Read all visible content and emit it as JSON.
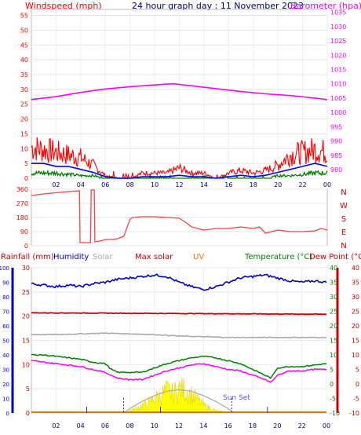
{
  "header": {
    "windspeed_label": "Windspeed (mph)",
    "title": "24 hour graph day : 11 November 2023",
    "barometer_label": "Barometer (hpa)"
  },
  "legend": {
    "rainfall": "Rainfall (mm)",
    "humidity": "Humidity",
    "solar": "Solar",
    "max_solar": "Max solar",
    "uv": "UV",
    "temperature": "Temperature (°C)",
    "dew_point": "Dew Point (°C)",
    "sunset": "Sun Set"
  },
  "colors": {
    "wind": "#ff0000",
    "wind_avg": "#0000ff",
    "wind_low": "#008000",
    "barometer": "#ff00ff",
    "direction": "#ff4040",
    "humidity": "#0000cc",
    "rainfall": "#cc0000",
    "solar": "#aaaaaa",
    "max_solar": "#cc0000",
    "uv": "#d08000",
    "temperature": "#008000",
    "dew_point": "#ff00ff",
    "sun": "#ffff00"
  },
  "chart_data": [
    {
      "type": "line",
      "panel": "wind_barometer",
      "x_ticks": [
        "02",
        "04",
        "06",
        "08",
        "10",
        "12",
        "14",
        "16",
        "18",
        "20",
        "22",
        "00"
      ],
      "y_left_ticks": [
        "0",
        "5",
        "10",
        "15",
        "20",
        "25",
        "30",
        "35",
        "40",
        "45",
        "50",
        "55"
      ],
      "y_right_ticks": [
        "980",
        "985",
        "990",
        "995",
        "1000",
        "1005",
        "1010",
        "1015",
        "1020",
        "1025",
        "1030",
        "1035"
      ],
      "ylim_left": [
        0,
        57
      ],
      "ylim_right": [
        977,
        1036
      ],
      "series": [
        {
          "name": "Barometer (hpa)",
          "axis": "right",
          "hours": [
            0,
            2,
            4,
            6,
            8,
            10,
            11.5,
            13,
            15,
            17,
            19,
            21,
            23,
            24
          ],
          "values": [
            1004.5,
            1005.5,
            1007,
            1008.2,
            1009,
            1009.6,
            1010,
            1009.3,
            1008.3,
            1007.3,
            1006.5,
            1005.9,
            1005,
            1004.5
          ]
        },
        {
          "name": "Windspeed (mph)",
          "axis": "left",
          "hours": [
            0,
            1,
            2,
            3,
            4,
            5,
            6,
            7,
            8,
            9,
            10,
            11,
            12,
            13,
            14,
            15,
            16,
            17,
            18,
            19,
            20,
            21,
            22,
            23,
            24
          ],
          "values": [
            12,
            11,
            10,
            9,
            8,
            5,
            1,
            0,
            0,
            2,
            2,
            2,
            4,
            2,
            2,
            0,
            2,
            3,
            2,
            3,
            5,
            9,
            10,
            11,
            10
          ]
        },
        {
          "name": "Average",
          "axis": "left",
          "hours": [
            0,
            1,
            2,
            3,
            4,
            5,
            6,
            7,
            8,
            9,
            10,
            11,
            12,
            13,
            14,
            15,
            16,
            17,
            18,
            19,
            20,
            21,
            22,
            23,
            24
          ],
          "values": [
            5,
            5,
            4,
            4,
            3,
            2,
            0.5,
            0,
            0,
            0.5,
            0.5,
            0.5,
            1,
            0.5,
            0.5,
            0,
            0.5,
            1,
            0.5,
            1,
            2,
            3,
            4,
            5,
            4
          ]
        },
        {
          "name": "Low",
          "axis": "left",
          "hours": [
            0,
            1,
            2,
            3,
            4,
            5,
            6,
            7,
            8,
            9,
            10,
            11,
            12,
            13,
            14,
            15,
            16,
            17,
            18,
            19,
            20,
            21,
            22,
            23,
            24
          ],
          "values": [
            2,
            2,
            2,
            1.5,
            1,
            1,
            0,
            0,
            0,
            0,
            0,
            0,
            0.5,
            0,
            0,
            0,
            0,
            0,
            0,
            0,
            1,
            1,
            1.5,
            2,
            2
          ]
        }
      ]
    },
    {
      "type": "line",
      "panel": "wind_direction",
      "y_ticks": [
        "0",
        "90",
        "180",
        "270",
        "360"
      ],
      "compass_labels": [
        "N",
        "W",
        "S",
        "E",
        "N"
      ],
      "ylim": [
        0,
        360
      ],
      "series": [
        {
          "name": "Wind direction",
          "hours": [
            0,
            1,
            2,
            3,
            3.9,
            3.95,
            4.8,
            4.85,
            5.1,
            5.15,
            5.6,
            6.0,
            6.5,
            7.0,
            7.5,
            8.0,
            8.2,
            9,
            10,
            11,
            12,
            12.5,
            13,
            14,
            15,
            16,
            17,
            18,
            18.5,
            19,
            19.5,
            20,
            21,
            22,
            23,
            23.5,
            24
          ],
          "values": [
            320,
            330,
            338,
            345,
            350,
            20,
            20,
            355,
            355,
            25,
            30,
            40,
            40,
            45,
            60,
            170,
            180,
            185,
            185,
            180,
            175,
            150,
            120,
            100,
            110,
            110,
            120,
            110,
            120,
            80,
            90,
            100,
            90,
            90,
            95,
            110,
            100
          ]
        }
      ]
    },
    {
      "type": "line",
      "panel": "weather",
      "x_ticks": [
        "02",
        "04",
        "06",
        "08",
        "10",
        "12",
        "14",
        "16",
        "18",
        "20",
        "22",
        "00"
      ],
      "humidity_ticks": [
        "0",
        "10",
        "20",
        "30",
        "40",
        "50",
        "60",
        "70",
        "80",
        "90",
        "100"
      ],
      "rain_ticks": [
        "0",
        "5",
        "10",
        "15",
        "20",
        "25",
        "30"
      ],
      "temp_ticks": [
        "-10",
        "-5",
        "0",
        "5",
        "10",
        "15",
        "20",
        "25",
        "30",
        "35",
        "40"
      ],
      "series": [
        {
          "name": "Humidity",
          "axis": "humidity",
          "hours": [
            0,
            1,
            2,
            3,
            4,
            5,
            6,
            7,
            8,
            9,
            10,
            11,
            12,
            13,
            14,
            15,
            16,
            17,
            18,
            19,
            20,
            21,
            22,
            23,
            24
          ],
          "values": [
            89,
            88,
            87,
            88,
            87,
            89,
            90,
            92,
            93,
            94,
            95,
            94,
            90,
            87,
            85,
            87,
            90,
            93,
            94,
            95,
            93,
            91,
            90,
            91,
            90
          ]
        },
        {
          "name": "Max solar",
          "axis": "humidity",
          "hours": [
            0,
            12,
            24
          ],
          "values": [
            69,
            68.5,
            68
          ]
        },
        {
          "name": "Solar",
          "axis": "humidity",
          "hours": [
            0,
            2,
            4,
            6,
            8,
            10,
            12,
            14,
            16,
            18,
            20,
            22,
            24
          ],
          "values": [
            54,
            54,
            54.5,
            55,
            54.5,
            54,
            53,
            52.5,
            52,
            52,
            52,
            52,
            52
          ]
        },
        {
          "name": "Temperature (°C)",
          "axis": "temp",
          "hours": [
            0,
            1,
            2,
            3,
            4,
            5,
            6,
            6.5,
            7,
            8,
            9,
            10,
            11,
            12,
            13,
            14,
            15,
            16,
            17,
            18,
            19,
            19.5,
            20,
            21,
            22,
            23,
            24
          ],
          "values": [
            10,
            10,
            9.5,
            9,
            8.5,
            7.5,
            7,
            5,
            4,
            4,
            4,
            5.5,
            7,
            8,
            9,
            9.5,
            9,
            8,
            7,
            5,
            3,
            2,
            5.5,
            6,
            6,
            6.5,
            7
          ]
        },
        {
          "name": "Dew Point (°C)",
          "axis": "temp",
          "hours": [
            0,
            1,
            2,
            3,
            4,
            5,
            6,
            6.5,
            7,
            8,
            9,
            10,
            11,
            12,
            13,
            14,
            15,
            16,
            17,
            18,
            19,
            19.5,
            20,
            21,
            22,
            23,
            24
          ],
          "values": [
            8,
            7.5,
            7,
            6.5,
            6,
            5,
            4,
            3,
            2,
            1.5,
            1.5,
            3,
            4.5,
            5.5,
            6.5,
            7,
            6,
            5,
            4.5,
            3,
            1.5,
            0.5,
            3,
            4.5,
            4.5,
            5,
            5
          ]
        },
        {
          "name": "Solar radiation",
          "axis": "humidity",
          "hours": [
            7.5,
            8.5,
            9.5,
            10,
            10.5,
            11,
            11.5,
            12,
            12.5,
            13,
            13.5,
            14,
            15,
            16
          ],
          "values": [
            0,
            4,
            9,
            13,
            16,
            20,
            17,
            22,
            21,
            17,
            12,
            7,
            2,
            0
          ]
        },
        {
          "name": "Max solar curve",
          "axis": "humidity",
          "hours": [
            7.5,
            8,
            9,
            10,
            11,
            12,
            13,
            14,
            15,
            16,
            16.5
          ],
          "values": [
            0,
            3,
            8,
            12,
            15,
            16,
            15,
            12,
            8,
            3,
            0
          ]
        }
      ]
    }
  ]
}
